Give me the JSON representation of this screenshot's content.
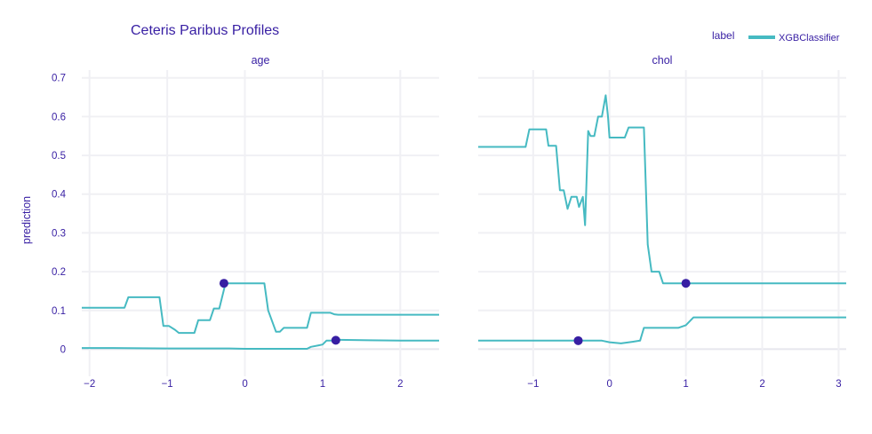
{
  "chart_data": {
    "type": "line",
    "title": "Ceteris Paribus Profiles",
    "ylabel": "prediction",
    "legend": {
      "title": "label",
      "placement": "top-right",
      "entries": [
        {
          "name": "XGBClassifier",
          "color": "#46bac2"
        }
      ]
    },
    "colors": {
      "line": "#46bac2",
      "point": "#371ea3",
      "text": "#371ea3",
      "grid": "#f0f0f4"
    },
    "grid": true,
    "ylim": [
      -0.07,
      0.72
    ],
    "yticks": [
      0,
      0.1,
      0.2,
      0.3,
      0.4,
      0.5,
      0.6,
      0.7
    ],
    "ytick_labels": [
      "0",
      "0.1",
      "0.2",
      "0.3",
      "0.4",
      "0.5",
      "0.6",
      "0.7"
    ],
    "panels": [
      {
        "title": "age",
        "xlim": [
          -2.1,
          2.5
        ],
        "xticks": [
          -2,
          -1,
          0,
          1,
          2
        ],
        "xtick_labels": [
          "−2",
          "−1",
          "0",
          "1",
          "2"
        ],
        "series": [
          {
            "x": [
              -2.1,
              -1.55,
              -1.5,
              -1.1,
              -1.05,
              -0.98,
              -0.9,
              -0.85,
              -0.65,
              -0.6,
              -0.45,
              -0.4,
              -0.33,
              -0.25,
              -0.15,
              0.2,
              0.25,
              0.3,
              0.4,
              0.45,
              0.5,
              0.6,
              0.8,
              0.85,
              1.1,
              1.15,
              1.2,
              2.5
            ],
            "y": [
              0.107,
              0.107,
              0.134,
              0.134,
              0.06,
              0.06,
              0.05,
              0.042,
              0.042,
              0.075,
              0.075,
              0.105,
              0.105,
              0.17,
              0.17,
              0.17,
              0.17,
              0.1,
              0.045,
              0.045,
              0.055,
              0.055,
              0.055,
              0.094,
              0.094,
              0.09,
              0.089,
              0.089
            ],
            "point": {
              "x": -0.27,
              "y": 0.17
            }
          },
          {
            "x": [
              -2.1,
              -1.7,
              -1.0,
              -0.2,
              0.0,
              0.5,
              0.8,
              0.85,
              0.95,
              1.0,
              1.05,
              1.1,
              1.2,
              1.6,
              2.0,
              2.5
            ],
            "y": [
              0.003,
              0.003,
              0.002,
              0.002,
              0.001,
              0.001,
              0.001,
              0.006,
              0.01,
              0.012,
              0.022,
              0.022,
              0.024,
              0.023,
              0.022,
              0.022
            ],
            "point": {
              "x": 1.17,
              "y": 0.023
            }
          }
        ]
      },
      {
        "title": "chol",
        "xlim": [
          -1.72,
          3.1
        ],
        "xticks": [
          -1,
          0,
          1,
          2,
          3
        ],
        "xtick_labels": [
          "−1",
          "0",
          "1",
          "2",
          "3"
        ],
        "series": [
          {
            "x": [
              -1.72,
              -1.1,
              -1.05,
              -0.83,
              -0.8,
              -0.7,
              -0.65,
              -0.6,
              -0.55,
              -0.5,
              -0.43,
              -0.4,
              -0.35,
              -0.32,
              -0.28,
              -0.25,
              -0.2,
              -0.15,
              -0.1,
              -0.05,
              -0.02,
              0.0,
              0.03,
              0.2,
              0.25,
              0.45,
              0.5,
              0.55,
              0.65,
              0.7,
              0.95,
              1.0,
              3.1
            ],
            "y": [
              0.522,
              0.522,
              0.567,
              0.567,
              0.525,
              0.525,
              0.41,
              0.41,
              0.362,
              0.393,
              0.393,
              0.367,
              0.393,
              0.32,
              0.563,
              0.55,
              0.55,
              0.6,
              0.6,
              0.655,
              0.6,
              0.546,
              0.546,
              0.546,
              0.572,
              0.572,
              0.27,
              0.2,
              0.2,
              0.17,
              0.17,
              0.17,
              0.17
            ],
            "point": {
              "x": 1.0,
              "y": 0.17
            }
          },
          {
            "x": [
              -1.72,
              -0.5,
              -0.38,
              -0.1,
              0.0,
              0.15,
              0.3,
              0.4,
              0.45,
              0.9,
              1.0,
              1.1,
              3.1
            ],
            "y": [
              0.022,
              0.022,
              0.022,
              0.022,
              0.018,
              0.015,
              0.019,
              0.022,
              0.055,
              0.055,
              0.062,
              0.082,
              0.082
            ],
            "point": {
              "x": -0.41,
              "y": 0.022
            }
          }
        ]
      }
    ]
  }
}
